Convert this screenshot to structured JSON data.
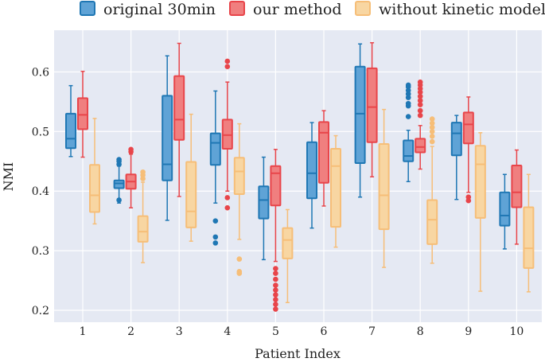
{
  "chart_data": {
    "type": "box",
    "title": "",
    "xlabel": "Patient Index",
    "ylabel": "NMI",
    "ylim": [
      0.18,
      0.67
    ],
    "yticks": [
      0.2,
      0.3,
      0.4,
      0.5,
      0.6
    ],
    "ytick_labels": [
      "0.2",
      "0.3",
      "0.4",
      "0.5",
      "0.6"
    ],
    "categories": [
      "1",
      "2",
      "3",
      "4",
      "5",
      "6",
      "7",
      "8",
      "9",
      "10"
    ],
    "grid": true,
    "legend_position": "top",
    "series": [
      {
        "name": "original 30min",
        "fill": "#5fa3d6",
        "edge": "#1f77b4",
        "boxes": [
          {
            "whislo": 0.458,
            "q1": 0.472,
            "med": 0.488,
            "q3": 0.53,
            "whishi": 0.577,
            "fliers": []
          },
          {
            "whislo": 0.38,
            "q1": 0.405,
            "med": 0.413,
            "q3": 0.418,
            "whishi": 0.442,
            "fliers": [
              0.445,
              0.45,
              0.453,
              0.385
            ]
          },
          {
            "whislo": 0.351,
            "q1": 0.418,
            "med": 0.445,
            "q3": 0.56,
            "whishi": 0.627,
            "fliers": []
          },
          {
            "whislo": 0.38,
            "q1": 0.444,
            "med": 0.481,
            "q3": 0.497,
            "whishi": 0.568,
            "fliers": [
              0.35,
              0.323,
              0.313
            ]
          },
          {
            "whislo": 0.285,
            "q1": 0.354,
            "med": 0.385,
            "q3": 0.408,
            "whishi": 0.457,
            "fliers": []
          },
          {
            "whislo": 0.338,
            "q1": 0.388,
            "med": 0.43,
            "q3": 0.482,
            "whishi": 0.515,
            "fliers": []
          },
          {
            "whislo": 0.39,
            "q1": 0.447,
            "med": 0.53,
            "q3": 0.609,
            "whishi": 0.647,
            "fliers": []
          },
          {
            "whislo": 0.416,
            "q1": 0.45,
            "med": 0.459,
            "q3": 0.485,
            "whishi": 0.502,
            "fliers": [
              0.525,
              0.543,
              0.547,
              0.557,
              0.563,
              0.569,
              0.575,
              0.578
            ]
          },
          {
            "whislo": 0.386,
            "q1": 0.46,
            "med": 0.497,
            "q3": 0.515,
            "whishi": 0.527,
            "fliers": []
          },
          {
            "whislo": 0.303,
            "q1": 0.342,
            "med": 0.359,
            "q3": 0.398,
            "whishi": 0.428,
            "fliers": []
          }
        ]
      },
      {
        "name": "our method",
        "fill": "#f07f7f",
        "edge": "#e8454a",
        "boxes": [
          {
            "whislo": 0.457,
            "q1": 0.504,
            "med": 0.528,
            "q3": 0.556,
            "whishi": 0.601,
            "fliers": []
          },
          {
            "whislo": 0.372,
            "q1": 0.404,
            "med": 0.416,
            "q3": 0.428,
            "whishi": 0.462,
            "fliers": [
              0.466,
              0.47
            ]
          },
          {
            "whislo": 0.391,
            "q1": 0.486,
            "med": 0.52,
            "q3": 0.593,
            "whishi": 0.648,
            "fliers": []
          },
          {
            "whislo": 0.4,
            "q1": 0.471,
            "med": 0.494,
            "q3": 0.52,
            "whishi": 0.583,
            "fliers": [
              0.389,
              0.372,
              0.609,
              0.618
            ]
          },
          {
            "whislo": 0.282,
            "q1": 0.376,
            "med": 0.43,
            "q3": 0.442,
            "whishi": 0.47,
            "fliers": [
              0.202,
              0.21,
              0.218,
              0.226,
              0.234,
              0.242,
              0.252,
              0.262,
              0.27
            ]
          },
          {
            "whislo": 0.375,
            "q1": 0.414,
            "med": 0.498,
            "q3": 0.516,
            "whishi": 0.535,
            "fliers": []
          },
          {
            "whislo": 0.424,
            "q1": 0.482,
            "med": 0.541,
            "q3": 0.606,
            "whishi": 0.649,
            "fliers": []
          },
          {
            "whislo": 0.437,
            "q1": 0.465,
            "med": 0.474,
            "q3": 0.488,
            "whishi": 0.51,
            "fliers": [
              0.527,
              0.535,
              0.545,
              0.552,
              0.559,
              0.566,
              0.572,
              0.578,
              0.583
            ]
          },
          {
            "whislo": 0.398,
            "q1": 0.48,
            "med": 0.512,
            "q3": 0.532,
            "whishi": 0.558,
            "fliers": [
              0.39,
              0.384
            ]
          },
          {
            "whislo": 0.311,
            "q1": 0.373,
            "med": 0.398,
            "q3": 0.443,
            "whishi": 0.469,
            "fliers": []
          }
        ]
      },
      {
        "name": "without kinetic model",
        "fill": "#f8d6a2",
        "edge": "#f6be78",
        "boxes": [
          {
            "whislo": 0.345,
            "q1": 0.365,
            "med": 0.393,
            "q3": 0.444,
            "whishi": 0.522,
            "fliers": []
          },
          {
            "whislo": 0.28,
            "q1": 0.315,
            "med": 0.332,
            "q3": 0.358,
            "whishi": 0.415,
            "fliers": [
              0.421,
              0.427,
              0.432
            ]
          },
          {
            "whislo": 0.316,
            "q1": 0.339,
            "med": 0.366,
            "q3": 0.449,
            "whishi": 0.529,
            "fliers": []
          },
          {
            "whislo": 0.319,
            "q1": 0.395,
            "med": 0.433,
            "q3": 0.456,
            "whishi": 0.513,
            "fliers": [
              0.286,
              0.265,
              0.262
            ]
          },
          {
            "whislo": 0.213,
            "q1": 0.287,
            "med": 0.318,
            "q3": 0.338,
            "whishi": 0.369,
            "fliers": []
          },
          {
            "whislo": 0.306,
            "q1": 0.34,
            "med": 0.442,
            "q3": 0.471,
            "whishi": 0.493,
            "fliers": []
          },
          {
            "whislo": 0.272,
            "q1": 0.336,
            "med": 0.393,
            "q3": 0.479,
            "whishi": 0.537,
            "fliers": []
          },
          {
            "whislo": 0.279,
            "q1": 0.311,
            "med": 0.352,
            "q3": 0.385,
            "whishi": 0.475,
            "fliers": [
              0.483,
              0.492,
              0.5,
              0.507,
              0.514,
              0.521
            ]
          },
          {
            "whislo": 0.232,
            "q1": 0.355,
            "med": 0.445,
            "q3": 0.476,
            "whishi": 0.498,
            "fliers": []
          },
          {
            "whislo": 0.231,
            "q1": 0.271,
            "med": 0.304,
            "q3": 0.373,
            "whishi": 0.428,
            "fliers": []
          }
        ]
      }
    ]
  }
}
